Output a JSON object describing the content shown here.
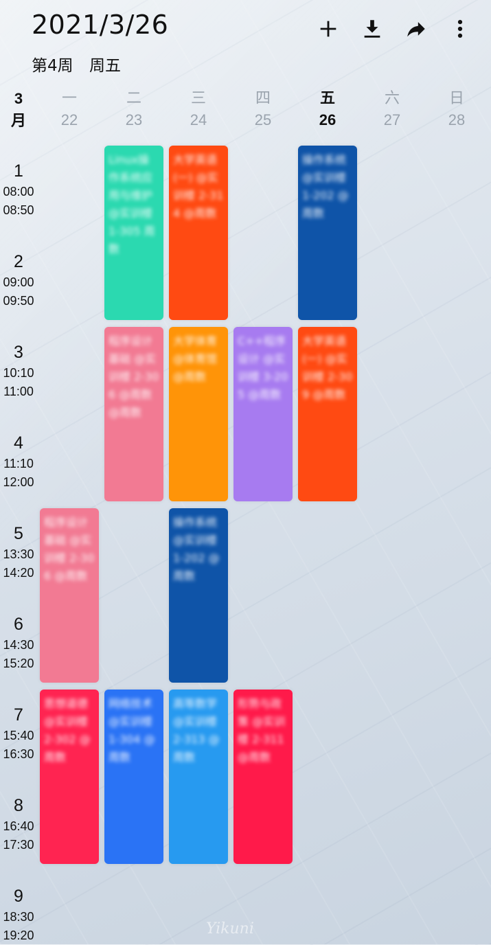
{
  "header": {
    "date": "2021/3/26",
    "week": "第4周",
    "weekday": "周五",
    "actions": {
      "add": "add-icon",
      "download": "download-icon",
      "share": "share-icon",
      "more": "more-icon"
    }
  },
  "month": {
    "num": "3",
    "unit": "月"
  },
  "days": [
    {
      "wd": "一",
      "dn": "22"
    },
    {
      "wd": "二",
      "dn": "23"
    },
    {
      "wd": "三",
      "dn": "24"
    },
    {
      "wd": "四",
      "dn": "25"
    },
    {
      "wd": "五",
      "dn": "26"
    },
    {
      "wd": "六",
      "dn": "27"
    },
    {
      "wd": "日",
      "dn": "28"
    }
  ],
  "slots": [
    {
      "num": "1",
      "start": "08:00",
      "end": "08:50"
    },
    {
      "num": "2",
      "start": "09:00",
      "end": "09:50"
    },
    {
      "num": "3",
      "start": "10:10",
      "end": "11:00"
    },
    {
      "num": "4",
      "start": "11:10",
      "end": "12:00"
    },
    {
      "num": "5",
      "start": "13:30",
      "end": "14:20"
    },
    {
      "num": "6",
      "start": "14:30",
      "end": "15:20"
    },
    {
      "num": "7",
      "start": "15:40",
      "end": "16:30"
    },
    {
      "num": "8",
      "start": "16:40",
      "end": "17:30"
    },
    {
      "num": "9",
      "start": "18:30",
      "end": "19:20"
    }
  ],
  "courses": [
    {
      "color": "#2bd9b0",
      "text": "Linux操作系统应用与维护 @实训楼 1-305 周数"
    },
    {
      "color": "#ff4a12",
      "text": "大学英语(一) @实训楼 2-314 @周数"
    },
    {
      "color": "#0f54a8",
      "text": "操作系统 @实训楼 1-202 @周数"
    },
    {
      "color": "#f27a93",
      "text": "程序设计基础 @实训楼 2-306 @周数 @周数"
    },
    {
      "color": "#ff9408",
      "text": "大学体育 @体育馆 @周数"
    },
    {
      "color": "#a77bf0",
      "text": "C++程序设计 @实训楼 3-205 @周数"
    },
    {
      "color": "#ff4a12",
      "text": "大学英语(一) @实训楼 2-309 @周数"
    },
    {
      "color": "#f27a93",
      "text": "程序设计基础 @实训楼 2-306 @周数"
    },
    {
      "color": "#0f54a8",
      "text": "操作系统 @实训楼 1-202 @周数"
    },
    {
      "color": "#ff2451",
      "text": "思想道德 @实训楼 2-302 @周数"
    },
    {
      "color": "#2a73f5",
      "text": "网络技术 @实训楼 1-304 @周数"
    },
    {
      "color": "#279af0",
      "text": "高等数学 @实训楼 2-313 @周数"
    },
    {
      "color": "#ff1a4a",
      "text": "形势与政策 @实训楼 2-311 @周数"
    }
  ],
  "watermark": "Yikuni"
}
